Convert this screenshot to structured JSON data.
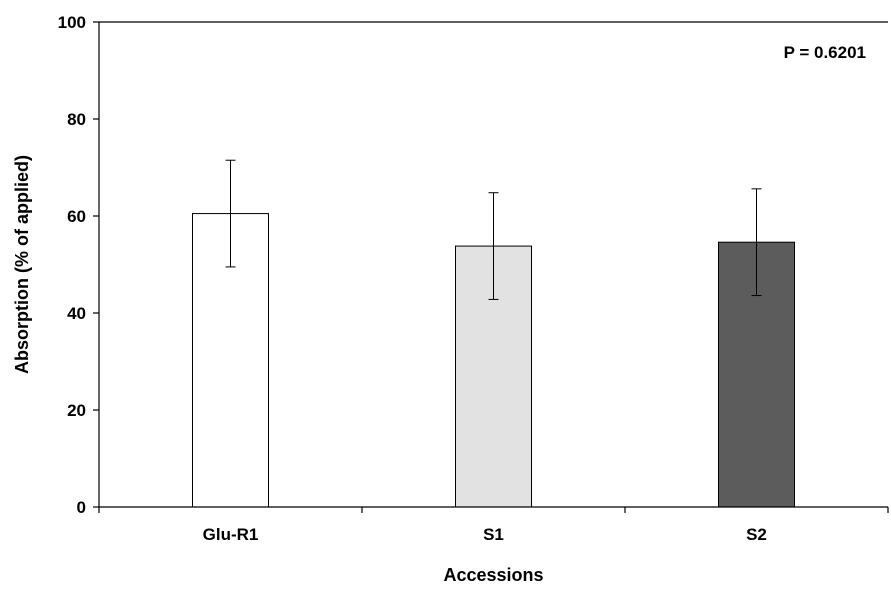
{
  "chart_data": {
    "type": "bar",
    "title": "",
    "xlabel": "Accessions",
    "ylabel": "Absorption (% of applied)",
    "ylim": [
      0,
      100
    ],
    "yticks": [
      0,
      20,
      40,
      60,
      80,
      100
    ],
    "grid": false,
    "categories": [
      "Glu-R1",
      "S1",
      "S2"
    ],
    "values": [
      60.5,
      53.8,
      54.6
    ],
    "errors": [
      11.0,
      11.0,
      11.0
    ],
    "bar_colors": [
      "#ffffff",
      "#e2e2e2",
      "#5c5c5c"
    ],
    "annotation": "P = 0.6201"
  }
}
